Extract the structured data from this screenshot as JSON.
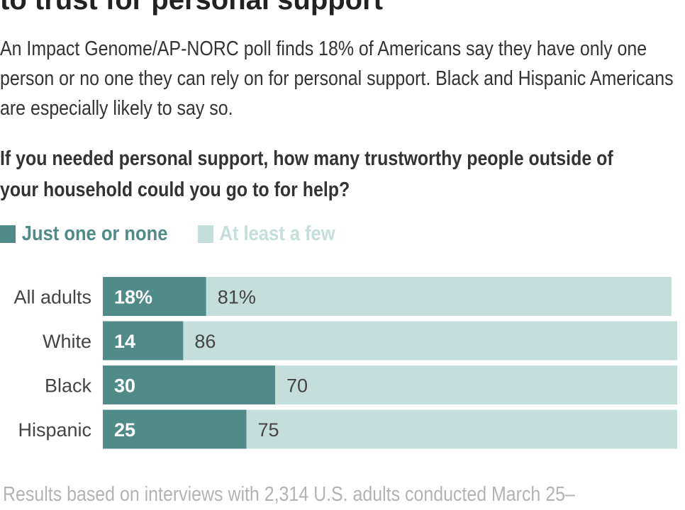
{
  "header": {
    "title": "to trust for personal support",
    "subtitle": "An Impact Genome/AP-NORC poll finds 18% of Americans say they have only one person or no one they can rely on for personal support. Black and Hispanic Americans are especially likely to say so.",
    "question": "If you needed personal support, how many trustworthy people outside of your household could you go to for help?"
  },
  "legend": [
    {
      "label": "Just one or none",
      "color": "#508b89"
    },
    {
      "label": "At least a few",
      "color": "#c3dedb"
    }
  ],
  "footnote": "Results based on interviews with 2,314 U.S. adults conducted March 25–",
  "chart_data": {
    "type": "bar",
    "orientation": "horizontal",
    "stacked": true,
    "categories": [
      "All adults",
      "White",
      "Black",
      "Hispanic"
    ],
    "series": [
      {
        "name": "Just one or none",
        "values": [
          18,
          14,
          30,
          25
        ],
        "labels": [
          "18%",
          "14",
          "30",
          "25"
        ],
        "color": "#508b89",
        "label_color": "#ffffff"
      },
      {
        "name": "At least a few",
        "values": [
          81,
          86,
          70,
          75
        ],
        "labels": [
          "81%",
          "86",
          "70",
          "75"
        ],
        "color": "#c3dedb",
        "label_color": "#444444"
      }
    ],
    "xlim": [
      0,
      100
    ],
    "grid": false,
    "legend_position": "top-left"
  }
}
